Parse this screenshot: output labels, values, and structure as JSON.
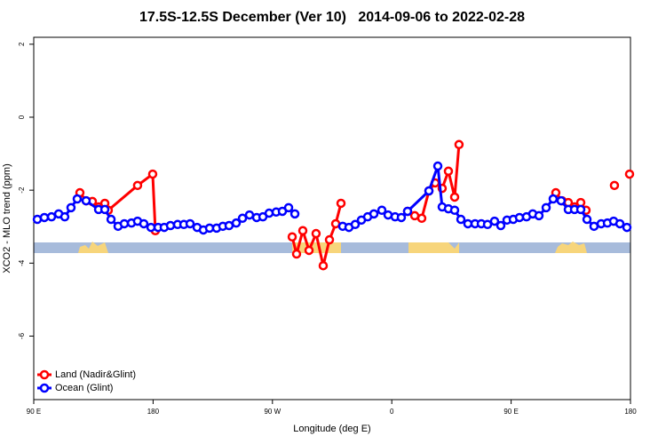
{
  "chart_data": {
    "type": "line",
    "title": "17.5S-12.5S December (Ver 10)   2014-09-06 to 2022-02-28",
    "x_label": "Longitude (deg E)",
    "y_label": "XCO2 - MLO trend (ppm)",
    "xlim": [
      90,
      540
    ],
    "xticks": [
      {
        "value": 90,
        "label": "90 E"
      },
      {
        "value": 180,
        "label": "180"
      },
      {
        "value": 270,
        "label": "90 W"
      },
      {
        "value": 360,
        "label": "0"
      },
      {
        "value": 450,
        "label": "90 E"
      },
      {
        "value": 540,
        "label": "180"
      }
    ],
    "ylim": [
      -7.74,
      2.19
    ],
    "yticks": [
      2,
      0,
      -2,
      -4,
      -6
    ],
    "legend": "bottom-left",
    "series": [
      {
        "name": "Land (Nadir&Glint)",
        "color": "#ff0000",
        "x": [
          124.8,
          129.5,
          134.2,
          138.9,
          143.6,
          146.2,
          168.3,
          179.7,
          181.7,
          null,
          284.9,
          288.2,
          292.9,
          297.6,
          302.9,
          308.3,
          313.0,
          317.7,
          321.7,
          null,
          371.9,
          377.3,
          382.6,
          388.0,
          392.7,
          398.0,
          402.7,
          407.4,
          410.7,
          null,
          483.7,
          488.4,
          493.1,
          497.8,
          502.5,
          506.5,
          null,
          527.9,
          null,
          539.3
        ],
        "values": [
          -2.07,
          -2.29,
          -2.31,
          -2.46,
          -2.36,
          -2.55,
          -1.87,
          -1.56,
          -3.11,
          null,
          -3.28,
          -3.75,
          -3.11,
          -3.65,
          -3.19,
          -4.07,
          -3.36,
          -2.92,
          -2.36,
          null,
          -2.58,
          -2.7,
          -2.77,
          -2.02,
          -1.8,
          -1.95,
          -1.48,
          -2.19,
          -0.75,
          null,
          -2.07,
          -2.29,
          -2.34,
          -2.46,
          -2.34,
          -2.55,
          null,
          -1.87,
          null,
          -1.56
        ]
      },
      {
        "name": "Ocean (Glint)",
        "color": "#0000ff",
        "x": [
          92.7,
          98.0,
          103.4,
          108.8,
          113.4,
          118.1,
          122.8,
          129.5,
          138.9,
          143.6,
          148.3,
          153.6,
          158.3,
          163.7,
          168.3,
          173.0,
          178.4,
          183.8,
          188.4,
          193.1,
          198.5,
          203.2,
          207.9,
          213.2,
          217.9,
          222.6,
          227.9,
          232.6,
          237.3,
          242.7,
          247.4,
          252.7,
          258.1,
          262.8,
          267.5,
          272.8,
          277.5,
          282.2,
          286.9,
          null,
          323.0,
          327.7,
          332.4,
          337.1,
          341.8,
          346.5,
          352.5,
          357.2,
          362.5,
          367.2,
          371.9,
          388.0,
          394.7,
          398.0,
          402.7,
          407.4,
          412.1,
          417.4,
          422.8,
          427.5,
          432.2,
          437.5,
          442.2,
          446.9,
          451.6,
          456.3,
          461.6,
          466.3,
          471.0,
          476.4,
          481.7,
          487.7,
          493.1,
          497.8,
          502.5,
          507.2,
          512.5,
          517.9,
          522.6,
          527.3,
          532.0,
          537.3
        ],
        "values": [
          -2.8,
          -2.75,
          -2.73,
          -2.65,
          -2.73,
          -2.48,
          -2.24,
          -2.29,
          -2.53,
          -2.53,
          -2.8,
          -2.99,
          -2.92,
          -2.9,
          -2.85,
          -2.92,
          -3.02,
          -3.02,
          -3.02,
          -2.97,
          -2.94,
          -2.94,
          -2.92,
          -3.02,
          -3.09,
          -3.04,
          -3.04,
          -2.99,
          -2.97,
          -2.9,
          -2.77,
          -2.68,
          -2.75,
          -2.73,
          -2.63,
          -2.6,
          -2.58,
          -2.48,
          -2.65,
          null,
          -2.99,
          -3.02,
          -2.94,
          -2.82,
          -2.73,
          -2.65,
          -2.55,
          -2.68,
          -2.73,
          -2.75,
          -2.58,
          -2.02,
          -1.34,
          -2.46,
          -2.51,
          -2.55,
          -2.8,
          -2.92,
          -2.92,
          -2.92,
          -2.94,
          -2.85,
          -2.97,
          -2.82,
          -2.8,
          -2.75,
          -2.73,
          -2.65,
          -2.7,
          -2.48,
          -2.24,
          -2.29,
          -2.53,
          -2.53,
          -2.53,
          -2.8,
          -2.99,
          -2.92,
          -2.9,
          -2.85,
          -2.92,
          -3.02
        ]
      }
    ]
  }
}
